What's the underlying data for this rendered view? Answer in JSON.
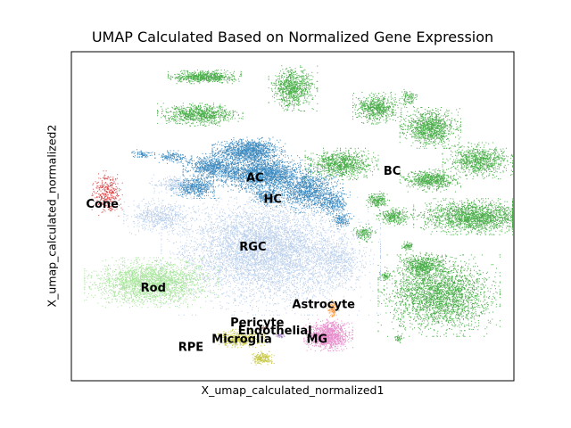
{
  "chart_data": {
    "type": "scatter",
    "title": "UMAP Calculated Based on Normalized Gene Expression",
    "xlabel": "X_umap_calculated_normalized1",
    "ylabel": "X_umap_calculated_normalized2",
    "xlim": [
      0,
      100
    ],
    "ylim": [
      0,
      100
    ],
    "xticks": [],
    "yticks": [],
    "grid": false,
    "legend": "none (labels on data)",
    "clusters": [
      {
        "name": "AC",
        "color": "#1f77b4",
        "label_pos": [
          41.5,
          61.5
        ],
        "blobs": [
          [
            40,
            70,
            6,
            3,
            1200
          ],
          [
            43,
            63,
            8,
            4,
            2000
          ],
          [
            32,
            65,
            5,
            3,
            800
          ],
          [
            28,
            59,
            4,
            2.5,
            500
          ],
          [
            53,
            58,
            6,
            5,
            1200
          ],
          [
            59,
            54,
            3,
            3,
            300
          ],
          [
            61,
            49,
            2,
            2,
            150
          ],
          [
            23,
            68,
            3,
            1.5,
            150
          ],
          [
            16,
            69,
            2,
            1,
            80
          ]
        ]
      },
      {
        "name": "HC",
        "color": "#1f77b4",
        "label_pos": [
          45.5,
          55
        ],
        "blobs": [
          [
            44,
            56,
            2.5,
            2,
            250
          ]
        ]
      },
      {
        "name": "BC",
        "color": "#2ca02c",
        "label_pos": [
          72.5,
          63.5
        ],
        "blobs": [
          [
            30,
            92.5,
            6,
            1.5,
            700
          ],
          [
            50,
            89,
            4,
            5,
            900
          ],
          [
            29,
            81,
            7,
            2.5,
            900
          ],
          [
            69,
            83,
            4,
            3.5,
            700
          ],
          [
            81,
            77,
            5,
            4.5,
            1100
          ],
          [
            61,
            66,
            6,
            3.5,
            1000
          ],
          [
            81,
            61,
            5,
            2.5,
            700
          ],
          [
            92,
            67,
            6,
            4,
            900
          ],
          [
            91,
            50,
            10,
            4,
            1900
          ],
          [
            83,
            26,
            10,
            9,
            2800
          ],
          [
            79,
            35,
            4,
            3,
            600
          ],
          [
            73,
            50,
            3,
            2,
            300
          ],
          [
            69,
            55,
            2,
            2,
            200
          ],
          [
            66,
            45,
            2,
            2,
            150
          ],
          [
            76,
            41,
            1,
            1,
            80
          ],
          [
            71,
            32,
            1,
            1,
            60
          ],
          [
            74,
            13,
            1,
            1,
            40
          ],
          [
            76,
            86,
            1.5,
            2,
            100
          ]
        ]
      },
      {
        "name": "Cone",
        "color": "#d62728",
        "label_pos": [
          7,
          53.5
        ],
        "blobs": [
          [
            8,
            57,
            2.5,
            5,
            350
          ]
        ]
      },
      {
        "name": "RGC",
        "color": "#aec7e8",
        "label_pos": [
          41,
          40.5
        ],
        "blobs": [
          [
            45,
            38,
            18,
            13,
            4500
          ],
          [
            42,
            43,
            12,
            9,
            1500
          ],
          [
            23,
            60,
            4,
            2,
            200
          ],
          [
            60,
            36,
            4,
            6,
            400
          ],
          [
            20,
            50,
            6,
            4,
            600
          ]
        ]
      },
      {
        "name": "Rod",
        "color": "#98df8a",
        "label_pos": [
          18.5,
          28
        ],
        "blobs": [
          [
            18,
            30,
            11,
            5.5,
            2600
          ]
        ]
      },
      {
        "name": "Astrocyte",
        "color": "#ff7f0e",
        "label_pos": [
          57,
          23
        ],
        "blobs": [
          [
            59,
            22,
            1,
            2,
            100
          ]
        ]
      },
      {
        "name": "Pericyte",
        "color": "#8c564b",
        "label_pos": [
          42,
          17.5
        ],
        "blobs": [
          [
            43,
            16,
            1,
            0.6,
            30
          ]
        ]
      },
      {
        "name": "Endothelial",
        "color": "#9467bd",
        "label_pos": [
          46,
          15
        ],
        "blobs": [
          [
            47,
            14,
            1,
            0.8,
            40
          ]
        ]
      },
      {
        "name": "Microglia",
        "color": "#bcbd22",
        "label_pos": [
          38.5,
          12.5
        ],
        "blobs": [
          [
            38,
            13,
            4,
            2,
            450
          ],
          [
            43,
            7,
            2,
            1.5,
            200
          ]
        ]
      },
      {
        "name": "MG",
        "color": "#e377c2",
        "label_pos": [
          55.5,
          12.5
        ],
        "blobs": [
          [
            58,
            14,
            4,
            3.5,
            1100
          ]
        ]
      },
      {
        "name": "RPE",
        "color": "#7f7f7f",
        "label_pos": [
          27,
          10
        ],
        "blobs": []
      }
    ]
  }
}
